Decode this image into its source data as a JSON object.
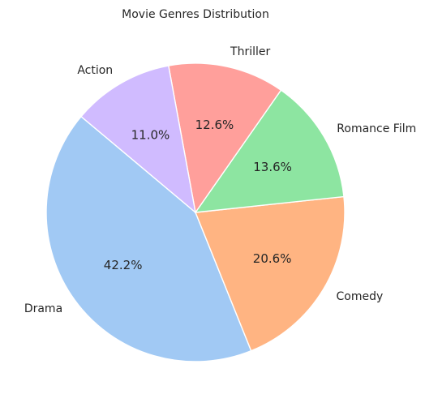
{
  "chart_data": {
    "type": "pie",
    "title": "Movie Genres Distribution",
    "start_angle_deg": 140,
    "direction": "counterclockwise",
    "slices": [
      {
        "label": "Drama",
        "value": 42.2,
        "pct_label": "42.2%",
        "color": "#a1c9f4"
      },
      {
        "label": "Comedy",
        "value": 20.6,
        "pct_label": "20.6%",
        "color": "#ffb482"
      },
      {
        "label": "Romance Film",
        "value": 13.6,
        "pct_label": "13.6%",
        "color": "#8de5a1"
      },
      {
        "label": "Thriller",
        "value": 12.6,
        "pct_label": "12.6%",
        "color": "#ff9f9b"
      },
      {
        "label": "Action",
        "value": 11.0,
        "pct_label": "11.0%",
        "color": "#d0bbff"
      }
    ]
  }
}
